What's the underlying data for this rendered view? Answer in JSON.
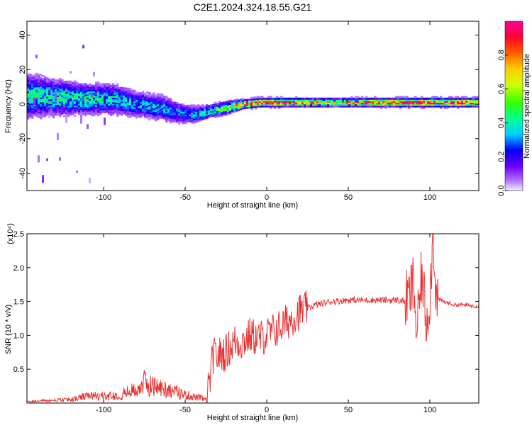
{
  "chart_data": [
    {
      "type": "heatmap",
      "title": "C2E1.2024.324.18.55.G21",
      "xlabel": "Height of straight line (km)",
      "ylabel": "Frequency (Hz)",
      "xlim": [
        -147,
        130
      ],
      "ylim": [
        -50,
        48
      ],
      "xticks": [
        "-100",
        "-50",
        "0",
        "50",
        "100"
      ],
      "xtick_values": [
        -100,
        -50,
        0,
        50,
        100
      ],
      "yticks": [
        "40",
        "20",
        "0",
        "-20",
        "-40"
      ],
      "ytick_values": [
        40,
        20,
        0,
        -20,
        -40
      ],
      "colorbar": {
        "label": "Normalized spectral amplitude",
        "ticks": [
          "0.0",
          "0.2",
          "0.4",
          "0.6",
          "0.8"
        ],
        "tick_values": [
          0.0,
          0.2,
          0.4,
          0.6,
          0.8
        ],
        "range": [
          0,
          1
        ]
      },
      "ridge": {
        "x": [
          -147,
          -130,
          -110,
          -95,
          -80,
          -65,
          -55,
          -45,
          -35,
          -25,
          -15,
          -5,
          0,
          10,
          20,
          40,
          60,
          80,
          100,
          130
        ],
        "center_freq": [
          5,
          4,
          3,
          3,
          0,
          -2,
          -5,
          -6,
          -4,
          -2,
          0,
          1,
          1,
          1,
          1,
          1,
          1,
          1,
          1,
          1
        ],
        "half_width": [
          10,
          8,
          7,
          7,
          6,
          6,
          5,
          4,
          3,
          3,
          2,
          2,
          2,
          2,
          2,
          2,
          2,
          2,
          2,
          2
        ],
        "amplitude": [
          0.45,
          0.45,
          0.45,
          0.4,
          0.35,
          0.35,
          0.3,
          0.35,
          0.45,
          0.6,
          0.75,
          0.85,
          0.9,
          0.8,
          0.75,
          0.6,
          0.75,
          0.9,
          0.95,
          0.9
        ]
      }
    },
    {
      "type": "line",
      "xlabel": "Height of straight line (km)",
      "ylabel": "SNR (10 * v/v)",
      "multiplier_label": "(x10⁴)",
      "xlim": [
        -147,
        130
      ],
      "ylim": [
        0,
        2.5
      ],
      "xticks": [
        "-100",
        "-50",
        "0",
        "50",
        "100"
      ],
      "xtick_values": [
        -100,
        -50,
        0,
        50,
        100
      ],
      "yticks": [
        "0.5",
        "1.0",
        "1.5",
        "2.0",
        "2.5"
      ],
      "ytick_values": [
        0.5,
        1.0,
        1.5,
        2.0,
        2.5
      ],
      "series_color": "#e83333",
      "x": [
        -147,
        -140,
        -130,
        -120,
        -110,
        -100,
        -90,
        -80,
        -75,
        -70,
        -60,
        -50,
        -40,
        -37,
        -35,
        -33,
        -30,
        -25,
        -20,
        -15,
        -10,
        -5,
        0,
        10,
        20,
        30,
        40,
        50,
        60,
        70,
        80,
        85,
        88,
        90,
        92,
        95,
        98,
        100,
        102,
        104,
        108,
        115,
        120,
        130
      ],
      "y": [
        0.02,
        0.03,
        0.04,
        0.05,
        0.1,
        0.1,
        0.12,
        0.2,
        0.3,
        0.25,
        0.2,
        0.12,
        0.07,
        0.05,
        0.3,
        0.7,
        0.7,
        0.75,
        0.9,
        0.9,
        1.0,
        0.95,
        1.0,
        1.15,
        1.35,
        1.45,
        1.5,
        1.52,
        1.52,
        1.52,
        1.52,
        1.5,
        1.6,
        1.8,
        1.0,
        1.9,
        1.2,
        1.6,
        2.5,
        1.55,
        1.5,
        1.45,
        1.45,
        1.43
      ]
    }
  ]
}
